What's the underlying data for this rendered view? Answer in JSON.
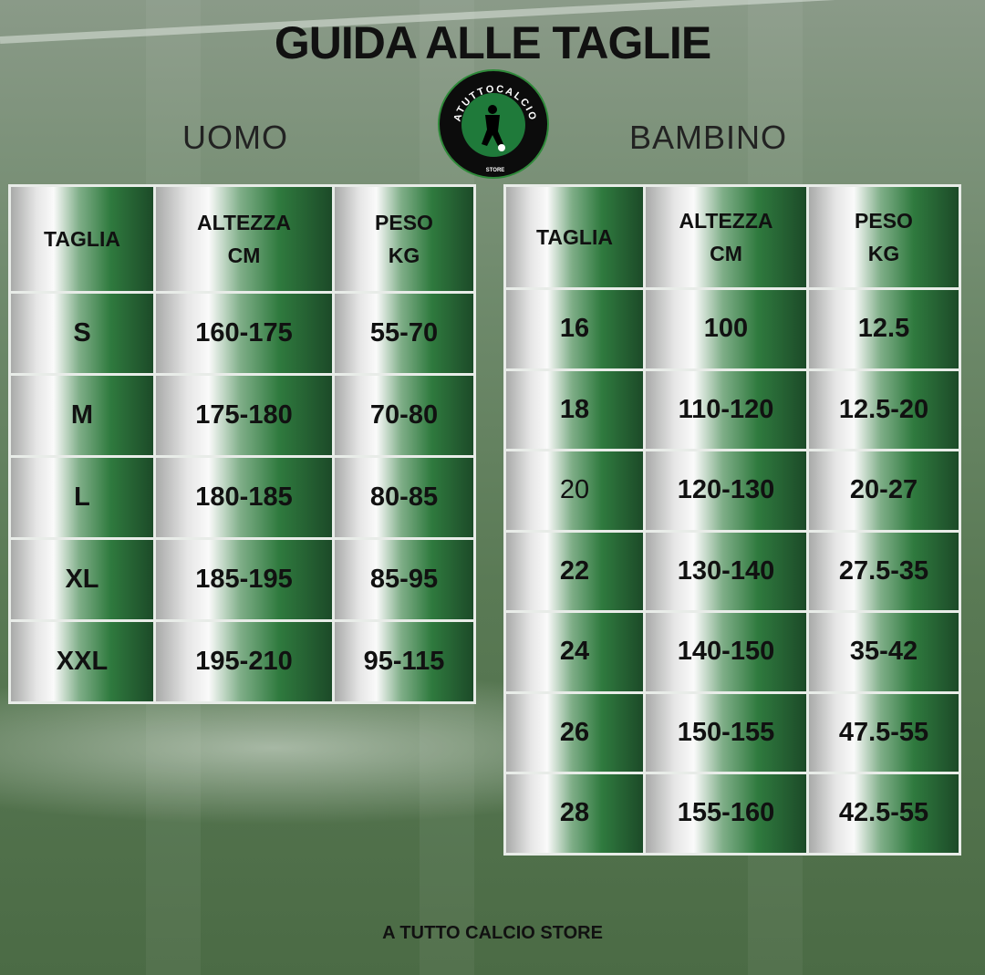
{
  "title": "GUIDA ALLE TAGLIE",
  "logo": {
    "text_top": "ATUTTOCALCIO",
    "text_bottom": "STORE",
    "icon": "football-player-logo"
  },
  "uomo": {
    "label": "UOMO",
    "headers": [
      "TAGLIA",
      "ALTEZZA\nCM",
      "PESO\nKG"
    ],
    "rows": [
      [
        "S",
        "160-175",
        "55-70"
      ],
      [
        "M",
        "175-180",
        "70-80"
      ],
      [
        "L",
        "180-185",
        "80-85"
      ],
      [
        "XL",
        "185-195",
        "85-95"
      ],
      [
        "XXL",
        "195-210",
        "95-115"
      ]
    ]
  },
  "bambino": {
    "label": "BAMBINO",
    "headers": [
      "TAGLIA",
      "ALTEZZA\nCM",
      "PESO\nKG"
    ],
    "rows": [
      [
        "16",
        "100",
        "12.5"
      ],
      [
        "18",
        "110-120",
        "12.5-20"
      ],
      [
        "20",
        "120-130",
        "20-27"
      ],
      [
        "22",
        "130-140",
        "27.5-35"
      ],
      [
        "24",
        "140-150",
        "35-42"
      ],
      [
        "26",
        "150-155",
        "47.5-55"
      ],
      [
        "28",
        "155-160",
        "42.5-55"
      ]
    ]
  },
  "footer": "A TUTTO CALCIO STORE",
  "colors": {
    "green_dark": "#1c4a28",
    "green": "#2f7a3e",
    "text": "#111111"
  }
}
